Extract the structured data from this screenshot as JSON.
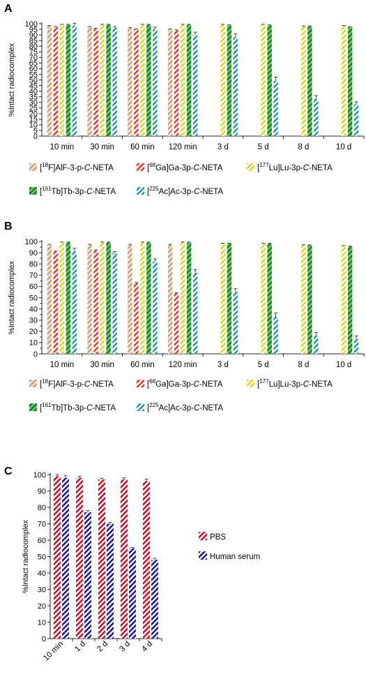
{
  "patterns": [
    {
      "id": "pat-f18",
      "stripe": "#c9a27e",
      "bg": "#f3e8dc"
    },
    {
      "id": "pat-ga68",
      "stripe": "#e23a35",
      "bg": "#ffffff"
    },
    {
      "id": "pat-lu177",
      "stripe": "#d7d72a",
      "bg": "#ffffff"
    },
    {
      "id": "pat-tb161",
      "stripe": "#1f7a2e",
      "bg": "#6fd16a"
    },
    {
      "id": "pat-ac225",
      "stripe": "#2a93ad",
      "bg": "#ffffff"
    },
    {
      "id": "pat-pbs",
      "stripe": "#c8102e",
      "bg": "#ffffff"
    },
    {
      "id": "pat-hs",
      "stripe": "#1c1c8c",
      "bg": "#ffffff"
    }
  ],
  "chart_data": [
    {
      "panel": "A",
      "type": "bar",
      "ylabel": "%Intact radiocomplex",
      "ylim": [
        0,
        100
      ],
      "yticks": [
        0,
        5,
        10,
        15,
        20,
        25,
        30,
        35,
        40,
        45,
        50,
        55,
        60,
        65,
        70,
        75,
        80,
        85,
        90,
        95,
        100
      ],
      "categories": [
        "10 min",
        "30 min",
        "60 min",
        "120 min",
        "3 d",
        "5 d",
        "8 d",
        "10 d"
      ],
      "series": [
        {
          "name": "[18F]AlF-3-p-C-NETA",
          "legend_sup": "18",
          "legend_pre": "[",
          "legend_post": "F]AlF-3-p-",
          "legend_ital": "C",
          "legend_end": "-NETA",
          "pattern": "pat-f18",
          "values": [
            98,
            97,
            96,
            95,
            null,
            null,
            null,
            null
          ],
          "errors": [
            0.5,
            0.5,
            0.5,
            0.5,
            null,
            null,
            null,
            null
          ]
        },
        {
          "name": "[68Ga]Ga-3p-C-NETA",
          "legend_sup": "68",
          "legend_pre": "[",
          "legend_post": "Ga]Ga-3p-",
          "legend_ital": "C",
          "legend_end": "-NETA",
          "pattern": "pat-ga68",
          "values": [
            97,
            95.5,
            95,
            94,
            null,
            null,
            null,
            null
          ],
          "errors": [
            0.5,
            0.5,
            0.5,
            0.5,
            null,
            null,
            null,
            null
          ]
        },
        {
          "name": "[177Lu]Lu-3p-C-NETA",
          "legend_sup": "177",
          "legend_pre": "[",
          "legend_post": "Lu]Lu-3p-",
          "legend_ital": "C",
          "legend_end": "-NETA",
          "pattern": "pat-lu177",
          "values": [
            99,
            99,
            99,
            99,
            99,
            99,
            97.5,
            98
          ],
          "errors": [
            0.5,
            0.5,
            0.5,
            0.5,
            0.5,
            0.5,
            0.5,
            0.5
          ]
        },
        {
          "name": "[161Tb]Tb-3p-C-NETA",
          "legend_sup": "161",
          "legend_pre": "[",
          "legend_post": "Tb]Tb-3p-",
          "legend_ital": "C",
          "legend_end": "-NETA",
          "pattern": "pat-tb161",
          "values": [
            99,
            99,
            99,
            99,
            98.5,
            98.5,
            97.5,
            97
          ],
          "errors": [
            0.5,
            0.5,
            0.5,
            0.5,
            0.5,
            0.5,
            0.5,
            0.5
          ]
        },
        {
          "name": "[225Ac]Ac-3p-C-NETA",
          "legend_sup": "225",
          "legend_pre": "[",
          "legend_post": "Ac]Ac-3p-",
          "legend_ital": "C",
          "legend_end": "-NETA",
          "pattern": "pat-ac225",
          "values": [
            98,
            96.5,
            95,
            90,
            88,
            49,
            33,
            28
          ],
          "errors": [
            2.5,
            1.0,
            2.0,
            2.5,
            3.0,
            3.5,
            3.0,
            2.5
          ]
        }
      ]
    },
    {
      "panel": "B",
      "type": "bar",
      "ylabel": "%Intact radiocomplex",
      "ylim": [
        0,
        100
      ],
      "yticks": [
        0,
        10,
        20,
        30,
        40,
        50,
        60,
        70,
        80,
        90,
        100
      ],
      "yticks_minor": [
        5,
        15,
        25,
        35,
        45,
        55,
        65,
        75,
        85,
        95
      ],
      "categories": [
        "10 min",
        "30 min",
        "60 min",
        "120 min",
        "3 d",
        "5 d",
        "8 d",
        "10 d"
      ],
      "series": [
        {
          "name": "[18F]AlF-3-p-C-NETA",
          "legend_sup": "18",
          "legend_pre": "[",
          "legend_post": "F]AlF-3-p-",
          "legend_ital": "C",
          "legend_end": "-NETA",
          "pattern": "pat-f18",
          "values": [
            97,
            97,
            97,
            97,
            null,
            null,
            null,
            null
          ],
          "errors": [
            0.5,
            0.5,
            0.5,
            0.5,
            null,
            null,
            null,
            null
          ]
        },
        {
          "name": "[68Ga]Ga-3p-C-NETA",
          "legend_sup": "68",
          "legend_pre": "[",
          "legend_post": "Ga]Ga-3p-",
          "legend_ital": "C",
          "legend_end": "-NETA",
          "pattern": "pat-ga68",
          "values": [
            91,
            92,
            63,
            54,
            null,
            null,
            null,
            null
          ],
          "errors": [
            0.5,
            0.5,
            0.5,
            0.5,
            null,
            null,
            null,
            null
          ]
        },
        {
          "name": "[177Lu]Lu-3p-C-NETA",
          "legend_sup": "177",
          "legend_pre": "[",
          "legend_post": "Lu]Lu-3p-",
          "legend_ital": "C",
          "legend_end": "-NETA",
          "pattern": "pat-lu177",
          "values": [
            99,
            99,
            99,
            99,
            98,
            98,
            96.5,
            96
          ],
          "errors": [
            0.5,
            0.5,
            0.5,
            0.5,
            0.5,
            0.5,
            0.5,
            0.5
          ]
        },
        {
          "name": "[161Tb]Tb-3p-C-NETA",
          "legend_sup": "161",
          "legend_pre": "[",
          "legend_post": "Tb]Tb-3p-",
          "legend_ital": "C",
          "legend_end": "-NETA",
          "pattern": "pat-tb161",
          "values": [
            99,
            99,
            99,
            99,
            98,
            98,
            96.5,
            95.5
          ],
          "errors": [
            0.5,
            0.5,
            0.5,
            0.5,
            0.5,
            0.5,
            0.5,
            0.5
          ]
        },
        {
          "name": "[225Ac]Ac-3p-C-NETA",
          "legend_sup": "225",
          "legend_pre": "[",
          "legend_post": "Ac]Ac-3p-",
          "legend_ital": "C",
          "legend_end": "-NETA",
          "pattern": "pat-ac225",
          "values": [
            91,
            90,
            82,
            72,
            55,
            33,
            16,
            13
          ],
          "errors": [
            3.0,
            1.0,
            2.5,
            3.0,
            3.0,
            3.5,
            3.0,
            3.0
          ]
        }
      ]
    },
    {
      "panel": "C",
      "type": "bar",
      "ylabel": "%Intact radiocomplex",
      "ylim": [
        0,
        100
      ],
      "yticks": [
        0,
        10,
        20,
        30,
        40,
        50,
        60,
        70,
        80,
        90,
        100
      ],
      "categories": [
        "10 min",
        "1 d",
        "2 d",
        "3 d",
        "4 d"
      ],
      "series": [
        {
          "name": "PBS",
          "pattern": "pat-pbs",
          "values": [
            99,
            98,
            97,
            97,
            96
          ],
          "errors": [
            1.0,
            1.0,
            0.8,
            1.0,
            1.2
          ]
        },
        {
          "name": "Human serum",
          "pattern": "pat-hs",
          "values": [
            98,
            77,
            70,
            55,
            48
          ],
          "errors": [
            1.5,
            1.0,
            0.8,
            0.5,
            1.0
          ]
        }
      ]
    }
  ]
}
